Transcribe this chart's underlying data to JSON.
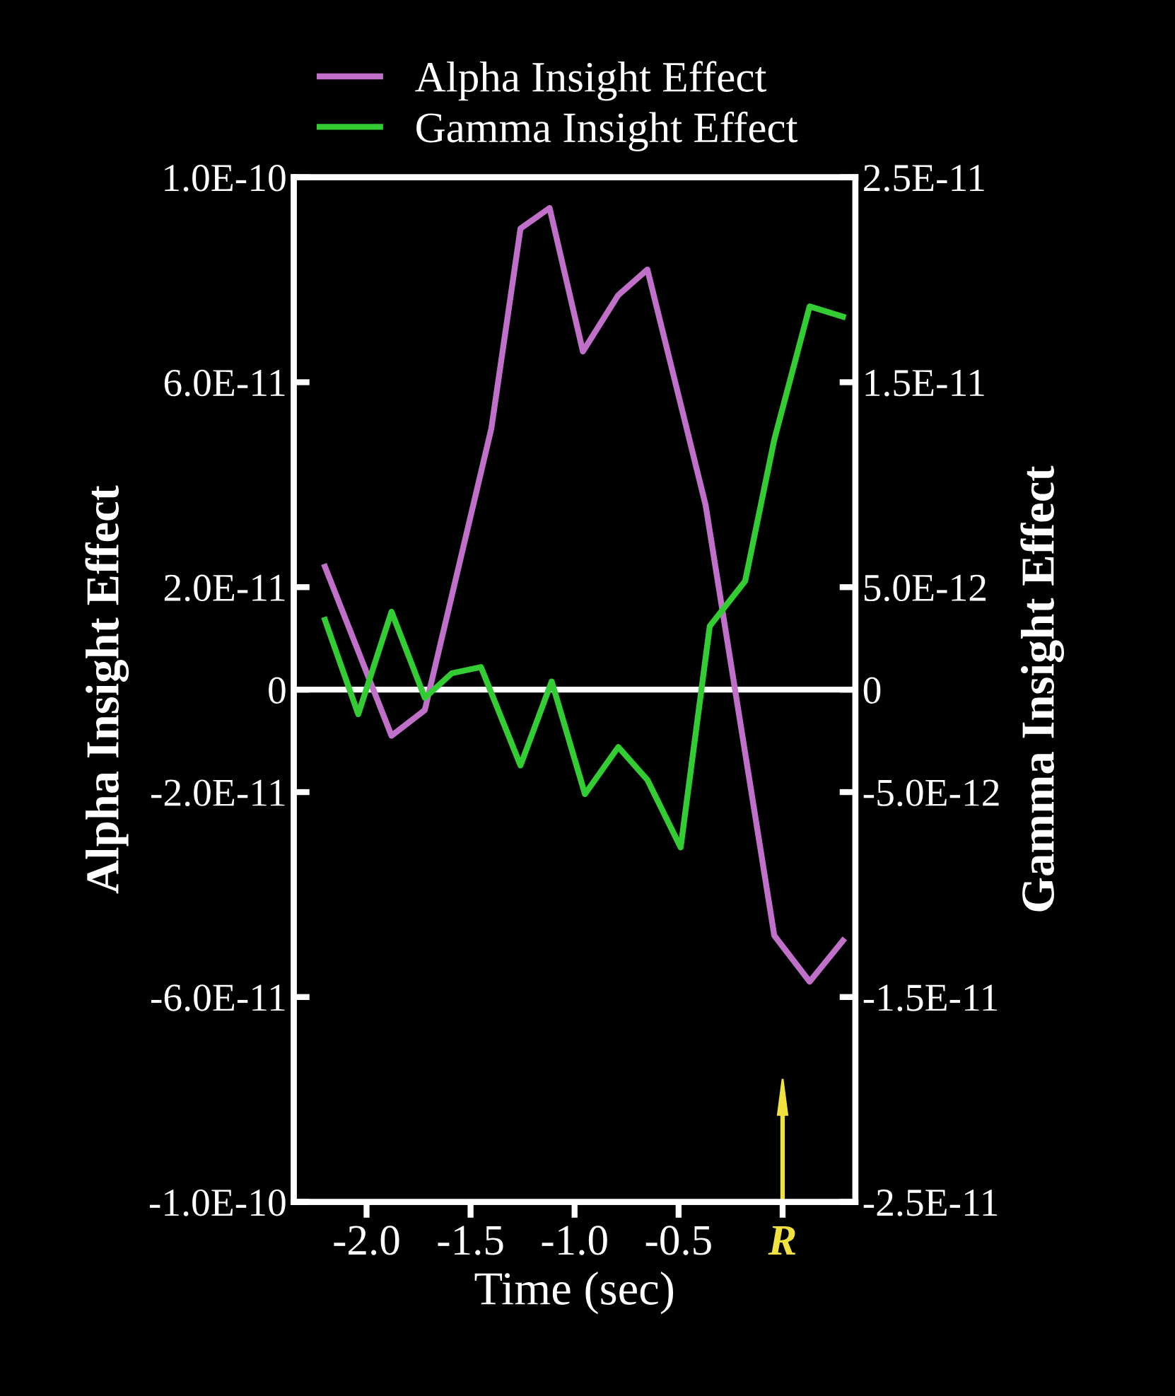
{
  "chart_data": {
    "type": "line",
    "xlabel": "Time (sec)",
    "ylabel": "Alpha Insight Effect",
    "y2label": "Gamma Insight Effect",
    "series": [
      {
        "name": "Alpha Insight Effect",
        "color": "#c070c8",
        "x": [
          -2.2,
          -1.88,
          -1.72,
          -1.4,
          -1.26,
          -1.12,
          -0.96,
          -0.79,
          -0.65,
          -0.37,
          -0.04,
          0.13,
          0.29
        ],
        "values": [
          2.4e-11,
          -9e-12,
          -4e-12,
          5.1e-11,
          9e-11,
          9.4e-11,
          6.6e-11,
          7.7e-11,
          8.2e-11,
          3.6e-11,
          -4.8e-11,
          -5.7e-11,
          -4.9e-11
        ]
      },
      {
        "name": "Gamma Insight Effect",
        "color": "#33cc33",
        "axis": "y2",
        "x": [
          -2.2,
          -2.04,
          -1.88,
          -1.72,
          -1.59,
          -1.45,
          -1.26,
          -1.11,
          -0.95,
          -0.79,
          -0.65,
          -0.49,
          -0.35,
          -0.18,
          -0.04,
          0.13,
          0.29
        ],
        "values": [
          3.4e-12,
          -1.2e-12,
          3.8e-12,
          -4e-13,
          8e-13,
          1.1e-12,
          -3.7e-12,
          4e-13,
          -5.1e-12,
          -2.8e-12,
          -4.4e-12,
          -7.7e-12,
          3.1e-12,
          5.3e-12,
          1.22e-11,
          1.87e-11,
          1.82e-11
        ]
      }
    ],
    "xlim": [
      -2.35,
      0.35
    ],
    "xticks": [
      {
        "value": -2,
        "label": "-2.0"
      },
      -1.5,
      {
        "value": -1,
        "label": "-1.0"
      },
      -0.5,
      {
        "value": 0,
        "label": "R"
      }
    ],
    "ylim": [
      -1e-10,
      1e-10
    ],
    "yticks": [
      {
        "value": -1e-10,
        "label": "-1.0E-10"
      },
      {
        "value": -6e-11,
        "label": "-6.0E-11"
      },
      {
        "value": -2e-11,
        "label": "-2.0E-11"
      },
      0,
      {
        "value": 2e-11,
        "label": "2.0E-11"
      },
      {
        "value": 6e-11,
        "label": "6.0E-11"
      },
      {
        "value": 1e-10,
        "label": "1.0E-10"
      }
    ],
    "y2lim": [
      -2.5e-11,
      2.5e-11
    ],
    "y2ticks": [
      {
        "value": -2.5e-11,
        "label": "-2.5E-11"
      },
      {
        "value": -1.5e-11,
        "label": "-1.5E-11"
      },
      {
        "value": -5e-12,
        "label": "-5.0E-12"
      },
      0,
      {
        "value": 5e-12,
        "label": "5.0E-12"
      },
      {
        "value": 1.5e-11,
        "label": "1.5E-11"
      },
      {
        "value": 2.5e-11,
        "label": "2.5E-11"
      }
    ],
    "ref_lines": [
      {
        "axis": "y",
        "value": 0,
        "color": "#ffffff"
      }
    ],
    "legend": "top",
    "grid": false,
    "marker": "none",
    "line_style": "solid"
  }
}
